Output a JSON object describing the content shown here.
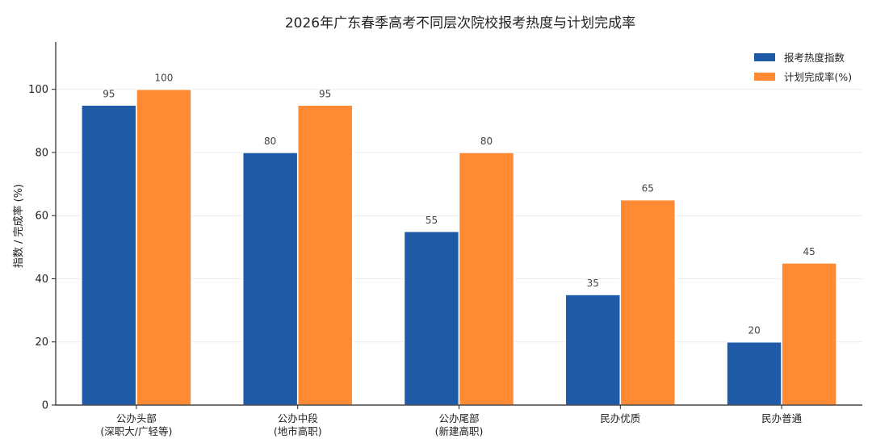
{
  "chart_data": {
    "type": "bar",
    "title": "2026年广东春季高考不同层次院校报考热度与计划完成率",
    "xlabel": "",
    "ylabel": "指数 / 完成率 (%)",
    "ylim": [
      0,
      115
    ],
    "yticks": [
      0,
      20,
      40,
      60,
      80,
      100
    ],
    "grid": "horizontal",
    "legend_position": "top-right",
    "categories": [
      [
        "公办头部",
        "(深职大/广轻等)"
      ],
      [
        "公办中段",
        "(地市高职)"
      ],
      [
        "公办尾部",
        "(新建高职)"
      ],
      [
        "民办优质"
      ],
      [
        "民办普通"
      ]
    ],
    "series": [
      {
        "name": "报考热度指数",
        "color": "#1f5aa6",
        "values": [
          95,
          80,
          55,
          35,
          20
        ]
      },
      {
        "name": "计划完成率(%)",
        "color": "#ff8a33",
        "values": [
          100,
          95,
          80,
          65,
          45
        ]
      }
    ]
  }
}
